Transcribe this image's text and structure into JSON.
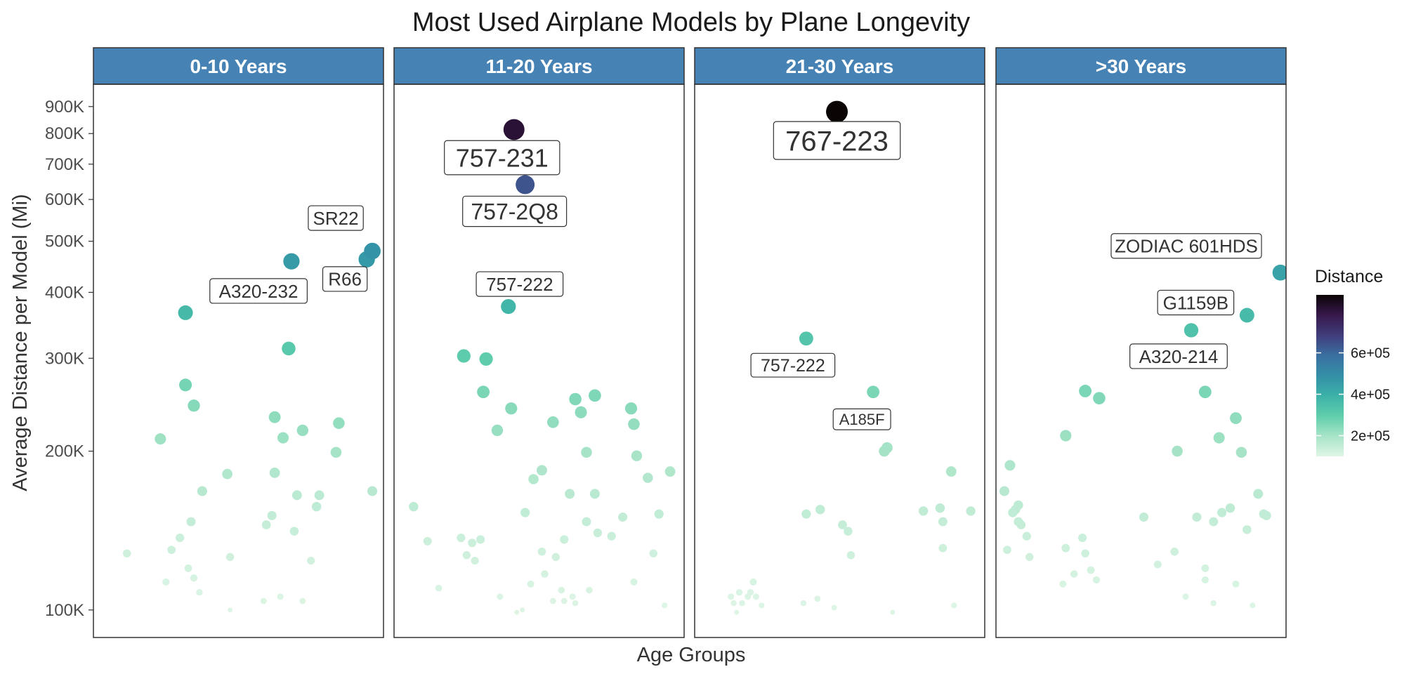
{
  "chart_data": {
    "type": "scatter",
    "title": "Most Used Airplane Models by Plane Longevity",
    "xlabel": "Age Groups",
    "ylabel": "Average Distance per Model (Mi)",
    "y_scale": "log",
    "ylim": [
      92000,
      980000
    ],
    "y_ticks": [
      100000,
      200000,
      300000,
      400000,
      500000,
      600000,
      700000,
      800000,
      900000
    ],
    "y_tick_labels": [
      "100K",
      "200K",
      "300K",
      "400K",
      "500K",
      "600K",
      "700K",
      "800K",
      "900K"
    ],
    "x_ticks_shown": false,
    "grid": false,
    "facet_strip_color": "#4682B4",
    "legend": {
      "title": "Distance",
      "position": "right",
      "type": "colorbar",
      "range": [
        100000,
        880000
      ],
      "ticks": [
        200000,
        400000,
        600000
      ],
      "tick_labels": [
        "2e+05",
        "4e+05",
        "6e+05"
      ],
      "colors": [
        "#DEF5E5",
        "#A8E4C7",
        "#60CEAC",
        "#3CB1A8",
        "#348FA7",
        "#3A6FA0",
        "#413D7B",
        "#37184C",
        "#0B0405"
      ]
    },
    "panels": [
      {
        "name": "0-10 Years",
        "points": [
          {
            "x": 0.1,
            "y": 128000
          },
          {
            "x": 0.24,
            "y": 113000
          },
          {
            "x": 0.26,
            "y": 130000
          },
          {
            "x": 0.29,
            "y": 137000
          },
          {
            "x": 0.32,
            "y": 120000
          },
          {
            "x": 0.33,
            "y": 147000
          },
          {
            "x": 0.34,
            "y": 115000
          },
          {
            "x": 0.36,
            "y": 108000
          },
          {
            "x": 0.37,
            "y": 168000
          },
          {
            "x": 0.46,
            "y": 181000
          },
          {
            "x": 0.47,
            "y": 126000
          },
          {
            "x": 0.47,
            "y": 100000
          },
          {
            "x": 0.59,
            "y": 104000
          },
          {
            "x": 0.6,
            "y": 145000
          },
          {
            "x": 0.62,
            "y": 151000
          },
          {
            "x": 0.65,
            "y": 106000
          },
          {
            "x": 0.7,
            "y": 141000
          },
          {
            "x": 0.71,
            "y": 165000
          },
          {
            "x": 0.73,
            "y": 104000
          },
          {
            "x": 0.76,
            "y": 124000
          },
          {
            "x": 0.78,
            "y": 157000
          },
          {
            "x": 0.79,
            "y": 165000
          },
          {
            "x": 0.98,
            "y": 168000
          },
          {
            "x": 0.63,
            "y": 182000
          },
          {
            "x": 0.22,
            "y": 211000
          },
          {
            "x": 0.31,
            "y": 267000
          },
          {
            "x": 0.34,
            "y": 244000
          },
          {
            "x": 0.63,
            "y": 232000
          },
          {
            "x": 0.66,
            "y": 212000
          },
          {
            "x": 0.73,
            "y": 219000
          },
          {
            "x": 0.85,
            "y": 199000
          },
          {
            "x": 0.86,
            "y": 226000
          },
          {
            "x": 0.68,
            "y": 313000
          },
          {
            "x": 0.31,
            "y": 366000,
            "label": "A320-232"
          },
          {
            "x": 0.69,
            "y": 458000
          },
          {
            "x": 0.96,
            "y": 462000,
            "label": "R66"
          },
          {
            "x": 0.98,
            "y": 479000,
            "label": "SR22"
          }
        ]
      },
      {
        "name": "11-20 Years",
        "points": [
          {
            "x": 0.05,
            "y": 157000
          },
          {
            "x": 0.1,
            "y": 135000
          },
          {
            "x": 0.14,
            "y": 110000
          },
          {
            "x": 0.22,
            "y": 137000
          },
          {
            "x": 0.24,
            "y": 127000
          },
          {
            "x": 0.26,
            "y": 134000
          },
          {
            "x": 0.27,
            "y": 124000
          },
          {
            "x": 0.29,
            "y": 136000
          },
          {
            "x": 0.36,
            "y": 106000
          },
          {
            "x": 0.42,
            "y": 99000
          },
          {
            "x": 0.44,
            "y": 100000
          },
          {
            "x": 0.45,
            "y": 153000
          },
          {
            "x": 0.47,
            "y": 112000
          },
          {
            "x": 0.48,
            "y": 177000
          },
          {
            "x": 0.51,
            "y": 184000
          },
          {
            "x": 0.51,
            "y": 129000
          },
          {
            "x": 0.52,
            "y": 117000
          },
          {
            "x": 0.55,
            "y": 104000
          },
          {
            "x": 0.56,
            "y": 126000
          },
          {
            "x": 0.58,
            "y": 109000
          },
          {
            "x": 0.59,
            "y": 136000
          },
          {
            "x": 0.59,
            "y": 104000
          },
          {
            "x": 0.61,
            "y": 166000
          },
          {
            "x": 0.62,
            "y": 106000
          },
          {
            "x": 0.63,
            "y": 103000
          },
          {
            "x": 0.67,
            "y": 147000
          },
          {
            "x": 0.68,
            "y": 109000
          },
          {
            "x": 0.7,
            "y": 166000
          },
          {
            "x": 0.71,
            "y": 140000
          },
          {
            "x": 0.76,
            "y": 138000
          },
          {
            "x": 0.8,
            "y": 150000
          },
          {
            "x": 0.84,
            "y": 113000
          },
          {
            "x": 0.91,
            "y": 128000
          },
          {
            "x": 0.89,
            "y": 178000
          },
          {
            "x": 0.93,
            "y": 152000
          },
          {
            "x": 0.95,
            "y": 102000
          },
          {
            "x": 0.97,
            "y": 183000
          },
          {
            "x": 0.23,
            "y": 303000
          },
          {
            "x": 0.31,
            "y": 299000
          },
          {
            "x": 0.3,
            "y": 259000
          },
          {
            "x": 0.35,
            "y": 219000
          },
          {
            "x": 0.4,
            "y": 241000
          },
          {
            "x": 0.55,
            "y": 227000
          },
          {
            "x": 0.63,
            "y": 251000
          },
          {
            "x": 0.65,
            "y": 237000
          },
          {
            "x": 0.67,
            "y": 199000
          },
          {
            "x": 0.7,
            "y": 255000
          },
          {
            "x": 0.83,
            "y": 241000
          },
          {
            "x": 0.84,
            "y": 225000
          },
          {
            "x": 0.85,
            "y": 196000
          },
          {
            "x": 0.39,
            "y": 376000,
            "label": "757-222"
          },
          {
            "x": 0.45,
            "y": 640000,
            "label": "757-2Q8"
          },
          {
            "x": 0.41,
            "y": 814000,
            "label": "757-231"
          }
        ]
      },
      {
        "name": "21-30 Years",
        "points": [
          {
            "x": 0.11,
            "y": 106000
          },
          {
            "x": 0.12,
            "y": 103000
          },
          {
            "x": 0.13,
            "y": 99000
          },
          {
            "x": 0.14,
            "y": 108000
          },
          {
            "x": 0.15,
            "y": 103000
          },
          {
            "x": 0.17,
            "y": 106000
          },
          {
            "x": 0.18,
            "y": 108000
          },
          {
            "x": 0.19,
            "y": 113000
          },
          {
            "x": 0.2,
            "y": 106000
          },
          {
            "x": 0.22,
            "y": 102000
          },
          {
            "x": 0.37,
            "y": 103000
          },
          {
            "x": 0.38,
            "y": 152000
          },
          {
            "x": 0.42,
            "y": 105000
          },
          {
            "x": 0.43,
            "y": 155000
          },
          {
            "x": 0.48,
            "y": 101000
          },
          {
            "x": 0.51,
            "y": 145000
          },
          {
            "x": 0.53,
            "y": 141000
          },
          {
            "x": 0.54,
            "y": 127000
          },
          {
            "x": 0.69,
            "y": 99000
          },
          {
            "x": 0.8,
            "y": 154000
          },
          {
            "x": 0.86,
            "y": 156000
          },
          {
            "x": 0.87,
            "y": 147000
          },
          {
            "x": 0.87,
            "y": 131000
          },
          {
            "x": 0.9,
            "y": 183000
          },
          {
            "x": 0.91,
            "y": 102000
          },
          {
            "x": 0.97,
            "y": 154000
          },
          {
            "x": 0.66,
            "y": 200000
          },
          {
            "x": 0.67,
            "y": 203000
          },
          {
            "x": 0.38,
            "y": 327000,
            "label": "757-222"
          },
          {
            "x": 0.62,
            "y": 259000,
            "label": "A185F"
          },
          {
            "x": 0.49,
            "y": 880000,
            "label": "767-223"
          }
        ]
      },
      {
        "name": ">30 Years",
        "points": [
          {
            "x": 0.01,
            "y": 168000
          },
          {
            "x": 0.02,
            "y": 130000
          },
          {
            "x": 0.03,
            "y": 188000
          },
          {
            "x": 0.04,
            "y": 153000
          },
          {
            "x": 0.05,
            "y": 155000
          },
          {
            "x": 0.06,
            "y": 158000
          },
          {
            "x": 0.06,
            "y": 147000
          },
          {
            "x": 0.07,
            "y": 145000
          },
          {
            "x": 0.09,
            "y": 138000
          },
          {
            "x": 0.1,
            "y": 126000
          },
          {
            "x": 0.22,
            "y": 112000
          },
          {
            "x": 0.23,
            "y": 131000
          },
          {
            "x": 0.26,
            "y": 117000
          },
          {
            "x": 0.29,
            "y": 137000
          },
          {
            "x": 0.3,
            "y": 128000
          },
          {
            "x": 0.32,
            "y": 119000
          },
          {
            "x": 0.34,
            "y": 114000
          },
          {
            "x": 0.51,
            "y": 150000
          },
          {
            "x": 0.56,
            "y": 122000
          },
          {
            "x": 0.62,
            "y": 129000
          },
          {
            "x": 0.66,
            "y": 106000
          },
          {
            "x": 0.7,
            "y": 150000
          },
          {
            "x": 0.73,
            "y": 114000
          },
          {
            "x": 0.73,
            "y": 120000
          },
          {
            "x": 0.76,
            "y": 103000
          },
          {
            "x": 0.76,
            "y": 147000
          },
          {
            "x": 0.79,
            "y": 153000
          },
          {
            "x": 0.82,
            "y": 156000
          },
          {
            "x": 0.84,
            "y": 112000
          },
          {
            "x": 0.88,
            "y": 142000
          },
          {
            "x": 0.9,
            "y": 102000
          },
          {
            "x": 0.92,
            "y": 166000
          },
          {
            "x": 0.94,
            "y": 152000
          },
          {
            "x": 0.95,
            "y": 151000
          },
          {
            "x": 0.23,
            "y": 214000
          },
          {
            "x": 0.3,
            "y": 260000
          },
          {
            "x": 0.35,
            "y": 252000
          },
          {
            "x": 0.63,
            "y": 200000
          },
          {
            "x": 0.73,
            "y": 259000
          },
          {
            "x": 0.78,
            "y": 212000
          },
          {
            "x": 0.84,
            "y": 231000
          },
          {
            "x": 0.86,
            "y": 199000
          },
          {
            "x": 0.68,
            "y": 339000,
            "label": "A320-214"
          },
          {
            "x": 0.88,
            "y": 362000,
            "label": "G1159B"
          },
          {
            "x": 1.0,
            "y": 436000,
            "label": "ZODIAC 601HDS"
          }
        ]
      }
    ]
  }
}
